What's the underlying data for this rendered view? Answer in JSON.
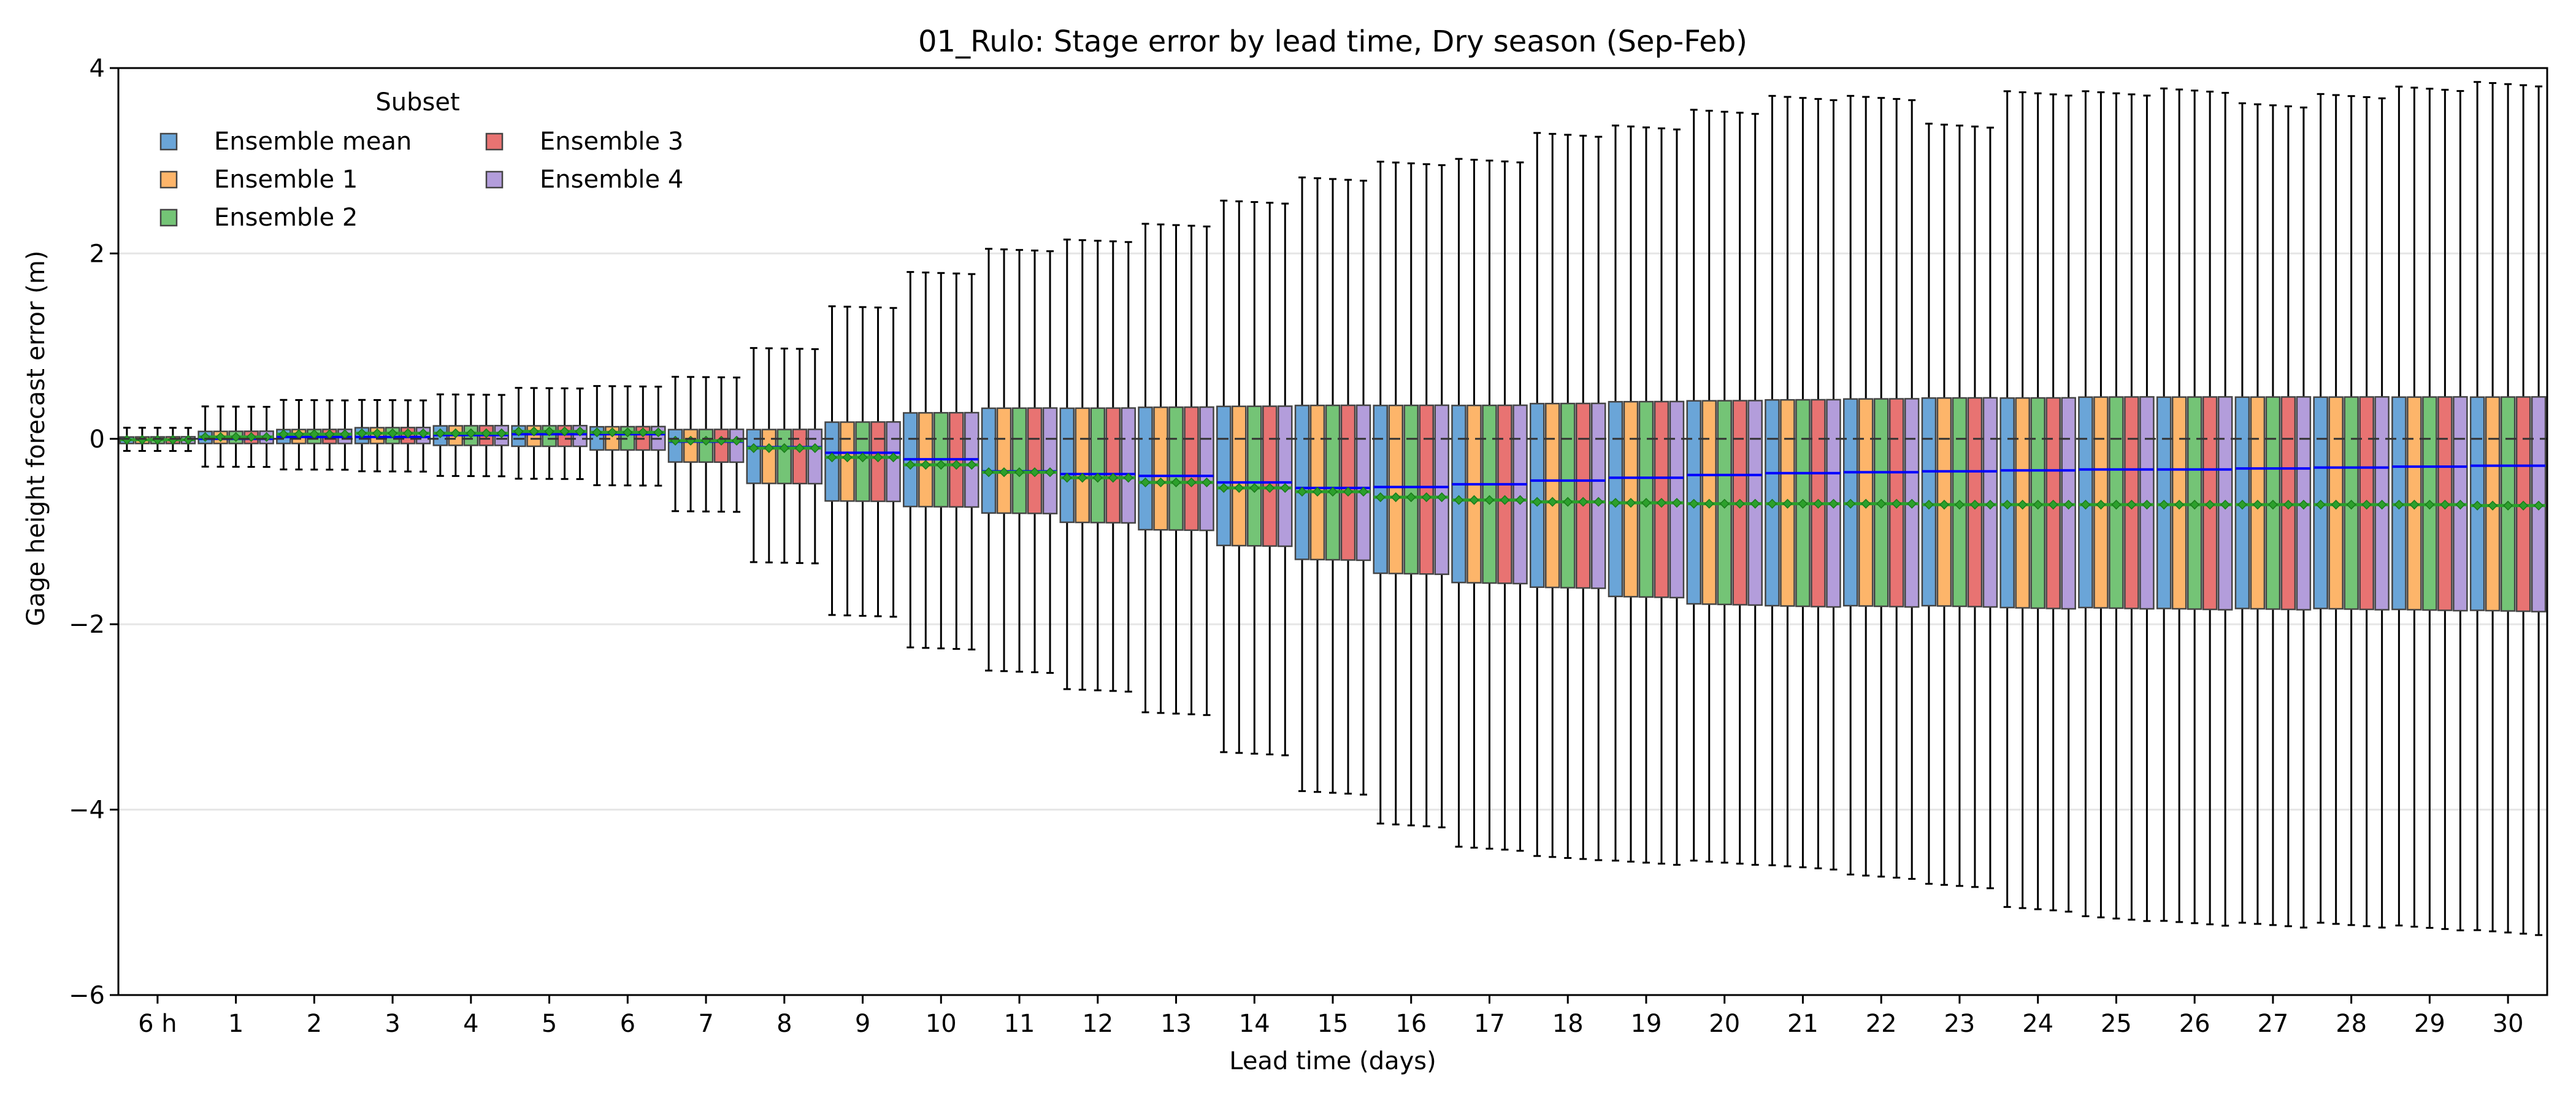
{
  "chart_data": {
    "type": "box",
    "title": "01_Rulo: Stage error by lead time, Dry season (Sep-Feb)",
    "xlabel": "Lead time (days)",
    "ylabel": "Gage height forecast error (m)",
    "ylim": [
      -6,
      4
    ],
    "yticks": [
      4,
      2,
      0,
      -2,
      -4,
      -6
    ],
    "ytick_labels": [
      "4",
      "2",
      "0",
      "−2",
      "−4",
      "−6"
    ],
    "grid": "horizontal",
    "zero_line": "dashed",
    "legend": {
      "title": "Subset",
      "placement": "top-left",
      "entries": [
        "Ensemble mean",
        "Ensemble 1",
        "Ensemble 2",
        "Ensemble 3",
        "Ensemble 4"
      ]
    },
    "categories": [
      "6 h",
      "1",
      "2",
      "3",
      "4",
      "5",
      "6",
      "7",
      "8",
      "9",
      "10",
      "11",
      "12",
      "13",
      "14",
      "15",
      "16",
      "17",
      "18",
      "19",
      "20",
      "21",
      "22",
      "23",
      "24",
      "25",
      "26",
      "27",
      "28",
      "29",
      "30"
    ],
    "series": [
      {
        "name": "Ensemble mean",
        "color": "#6aa5d8"
      },
      {
        "name": "Ensemble 1",
        "color": "#fdb56a"
      },
      {
        "name": "Ensemble 2",
        "color": "#74c476"
      },
      {
        "name": "Ensemble 3",
        "color": "#e87372"
      },
      {
        "name": "Ensemble 4",
        "color": "#b39ddb"
      }
    ],
    "median_color": "#0000ff",
    "mean_color": "#2ca02c",
    "boxes": {
      "whisker_low": [
        -0.13,
        -0.3,
        -0.33,
        -0.35,
        -0.4,
        -0.43,
        -0.5,
        -0.78,
        -1.33,
        -1.9,
        -2.25,
        -2.5,
        -2.7,
        -2.95,
        -3.38,
        -3.8,
        -4.15,
        -4.4,
        -4.5,
        -4.55,
        -4.55,
        -4.6,
        -4.7,
        -4.8,
        -5.05,
        -5.15,
        -5.2,
        -5.22,
        -5.22,
        -5.25,
        -5.3
      ],
      "q1": [
        -0.05,
        -0.05,
        -0.05,
        -0.05,
        -0.07,
        -0.08,
        -0.12,
        -0.25,
        -0.48,
        -0.67,
        -0.73,
        -0.8,
        -0.9,
        -0.98,
        -1.15,
        -1.3,
        -1.45,
        -1.55,
        -1.6,
        -1.7,
        -1.78,
        -1.8,
        -1.8,
        -1.8,
        -1.82,
        -1.82,
        -1.83,
        -1.83,
        -1.83,
        -1.84,
        -1.85
      ],
      "median": [
        -0.01,
        0.0,
        0.02,
        0.02,
        0.04,
        0.05,
        0.05,
        -0.03,
        -0.09,
        -0.15,
        -0.22,
        -0.35,
        -0.38,
        -0.4,
        -0.47,
        -0.53,
        -0.52,
        -0.49,
        -0.45,
        -0.42,
        -0.39,
        -0.37,
        -0.36,
        -0.35,
        -0.34,
        -0.33,
        -0.33,
        -0.32,
        -0.31,
        -0.3,
        -0.29
      ],
      "q3": [
        0.02,
        0.08,
        0.1,
        0.12,
        0.14,
        0.14,
        0.13,
        0.1,
        0.1,
        0.18,
        0.28,
        0.33,
        0.33,
        0.34,
        0.35,
        0.36,
        0.36,
        0.36,
        0.38,
        0.4,
        0.41,
        0.42,
        0.43,
        0.44,
        0.44,
        0.45,
        0.45,
        0.45,
        0.45,
        0.45,
        0.45
      ],
      "whisker_high": [
        0.12,
        0.35,
        0.42,
        0.42,
        0.48,
        0.55,
        0.57,
        0.67,
        0.98,
        1.43,
        1.8,
        2.05,
        2.15,
        2.32,
        2.57,
        2.82,
        2.99,
        3.02,
        3.3,
        3.38,
        3.55,
        3.7,
        3.7,
        3.4,
        3.75,
        3.75,
        3.78,
        3.62,
        3.72,
        3.8,
        3.85
      ],
      "mean": [
        -0.01,
        0.02,
        0.05,
        0.06,
        0.06,
        0.08,
        0.07,
        -0.02,
        -0.1,
        -0.2,
        -0.28,
        -0.36,
        -0.42,
        -0.47,
        -0.53,
        -0.57,
        -0.63,
        -0.66,
        -0.68,
        -0.69,
        -0.7,
        -0.7,
        -0.7,
        -0.71,
        -0.71,
        -0.71,
        -0.71,
        -0.71,
        -0.71,
        -0.71,
        -0.72
      ]
    }
  }
}
